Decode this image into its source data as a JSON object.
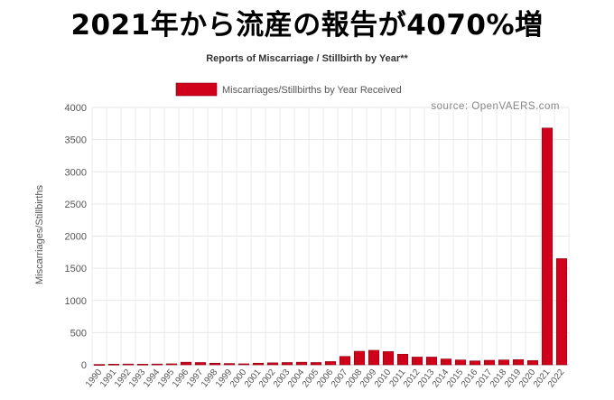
{
  "headline": "2021年から流産の報告が4070%増",
  "chart_data": {
    "type": "bar",
    "title": "Reports of Miscarriage / Stillbirth by Year**",
    "legend": "Miscarriages/Stillbirths by Year Received",
    "legend_position": "top-center",
    "source": "source: OpenVAERS.com",
    "ylabel": "Miscarriages/Stillbirths",
    "xlabel": "",
    "ylim": [
      0,
      4000
    ],
    "yticks": [
      0,
      500,
      1000,
      1500,
      2000,
      2500,
      3000,
      3500,
      4000
    ],
    "grid": true,
    "bar_color": "#d0021b",
    "bar_edge_color": "#8a0010",
    "categories": [
      "1990",
      "1991",
      "1992",
      "1993",
      "1994",
      "1995",
      "1996",
      "1997",
      "1998",
      "1999",
      "2000",
      "2001",
      "2002",
      "2003",
      "2004",
      "2005",
      "2006",
      "2007",
      "2008",
      "2009",
      "2010",
      "2011",
      "2012",
      "2013",
      "2014",
      "2015",
      "2016",
      "2017",
      "2018",
      "2019",
      "2020",
      "2021",
      "2022"
    ],
    "values": [
      5,
      10,
      12,
      10,
      12,
      15,
      40,
      35,
      25,
      20,
      15,
      25,
      30,
      35,
      40,
      35,
      50,
      130,
      210,
      225,
      205,
      165,
      120,
      120,
      90,
      75,
      60,
      70,
      75,
      80,
      65,
      3680,
      1650
    ]
  }
}
